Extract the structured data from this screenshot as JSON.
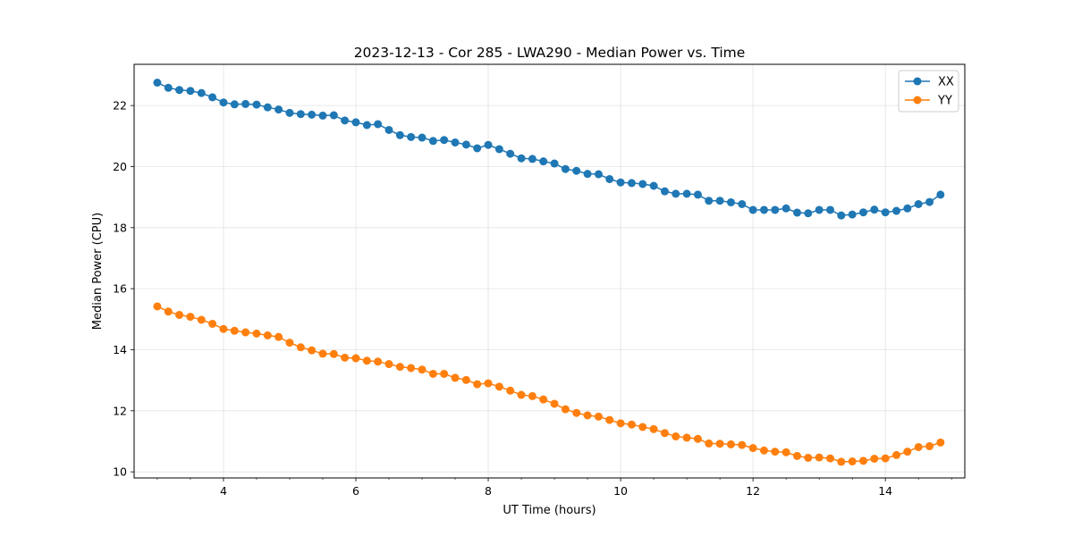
{
  "chart_data": {
    "type": "line",
    "title": "2023-12-13 - Cor 285 - LWA290 - Median Power vs. Time",
    "xlabel": "UT Time (hours)",
    "ylabel": "Median Power (CPU)",
    "xlim": [
      2.65,
      15.2
    ],
    "ylim": [
      9.8,
      23.35
    ],
    "x_ticks": [
      4,
      6,
      8,
      10,
      12,
      14
    ],
    "x_tick_labels": [
      "4",
      "6",
      "8",
      "10",
      "12",
      "14"
    ],
    "y_ticks": [
      10,
      12,
      14,
      16,
      18,
      20,
      22
    ],
    "y_tick_labels": [
      "10",
      "12",
      "14",
      "16",
      "18",
      "20",
      "22"
    ],
    "grid": true,
    "legend_position": "top-right",
    "x": [
      3.0,
      3.167,
      3.333,
      3.5,
      3.667,
      3.833,
      4.0,
      4.167,
      4.333,
      4.5,
      4.667,
      4.833,
      5.0,
      5.167,
      5.333,
      5.5,
      5.667,
      5.833,
      6.0,
      6.167,
      6.333,
      6.5,
      6.667,
      6.833,
      7.0,
      7.167,
      7.333,
      7.5,
      7.667,
      7.833,
      8.0,
      8.167,
      8.333,
      8.5,
      8.667,
      8.833,
      9.0,
      9.167,
      9.333,
      9.5,
      9.667,
      9.833,
      10.0,
      10.167,
      10.333,
      10.5,
      10.667,
      10.833,
      11.0,
      11.167,
      11.333,
      11.5,
      11.667,
      11.833,
      12.0,
      12.167,
      12.333,
      12.5,
      12.667,
      12.833,
      13.0,
      13.167,
      13.333,
      13.5,
      13.667,
      13.833,
      14.0,
      14.167,
      14.333,
      14.5,
      14.667,
      14.833
    ],
    "series": [
      {
        "name": "XX",
        "color": "#1f77b4",
        "values": [
          22.75,
          22.58,
          22.51,
          22.48,
          22.41,
          22.27,
          22.1,
          22.04,
          22.05,
          22.03,
          21.94,
          21.87,
          21.76,
          21.72,
          21.7,
          21.67,
          21.68,
          21.51,
          21.45,
          21.36,
          21.39,
          21.2,
          21.03,
          20.97,
          20.95,
          20.84,
          20.87,
          20.79,
          20.72,
          20.6,
          20.71,
          20.57,
          20.42,
          20.27,
          20.25,
          20.17,
          20.1,
          19.92,
          19.86,
          19.76,
          19.75,
          19.59,
          19.48,
          19.46,
          19.43,
          19.37,
          19.19,
          19.11,
          19.11,
          19.08,
          18.88,
          18.88,
          18.83,
          18.77,
          18.58,
          18.58,
          18.58,
          18.63,
          18.49,
          18.47,
          18.58,
          18.58,
          18.4,
          18.43,
          18.5,
          18.59,
          18.5,
          18.55,
          18.63,
          18.77,
          18.84,
          19.08
        ]
      },
      {
        "name": "YY",
        "color": "#ff7f0e",
        "values": [
          15.42,
          15.25,
          15.14,
          15.08,
          14.98,
          14.85,
          14.68,
          14.62,
          14.57,
          14.53,
          14.47,
          14.42,
          14.23,
          14.08,
          13.98,
          13.87,
          13.86,
          13.74,
          13.72,
          13.64,
          13.61,
          13.53,
          13.44,
          13.4,
          13.35,
          13.21,
          13.21,
          13.08,
          13.01,
          12.87,
          12.9,
          12.79,
          12.66,
          12.52,
          12.48,
          12.37,
          12.23,
          12.05,
          11.93,
          11.85,
          11.81,
          11.7,
          11.59,
          11.55,
          11.47,
          11.4,
          11.27,
          11.16,
          11.12,
          11.08,
          10.93,
          10.92,
          10.9,
          10.88,
          10.78,
          10.7,
          10.66,
          10.64,
          10.52,
          10.46,
          10.47,
          10.44,
          10.33,
          10.34,
          10.36,
          10.43,
          10.44,
          10.55,
          10.66,
          10.81,
          10.84,
          10.96
        ]
      }
    ]
  }
}
